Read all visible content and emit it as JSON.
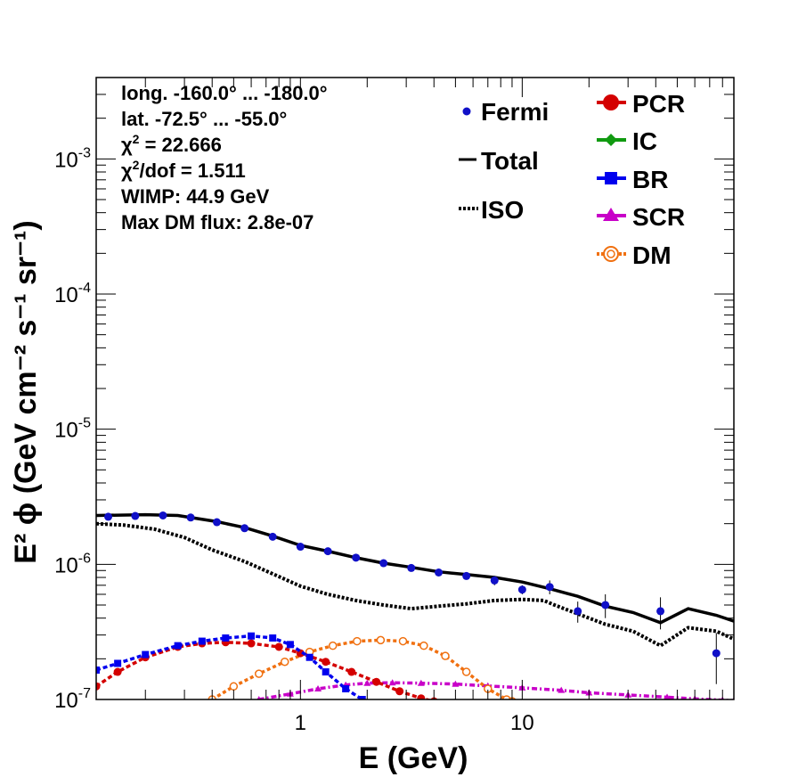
{
  "chart_data": {
    "type": "line",
    "x_scale": "log",
    "y_scale": "log",
    "xlim": [
      0.12,
      90
    ],
    "ylim": [
      1e-07,
      0.004
    ],
    "xlabel": "E (GeV)",
    "ylabel": "E² ϕ (GeV cm⁻² s⁻¹ sr⁻¹)",
    "x_ticks": [
      {
        "value": 1,
        "label": "1"
      },
      {
        "value": 10,
        "label": "10"
      }
    ],
    "y_ticks": [
      {
        "value": 1e-07,
        "base": "10",
        "exp": "-7"
      },
      {
        "value": 1e-06,
        "base": "10",
        "exp": "-6"
      },
      {
        "value": 1e-05,
        "base": "10",
        "exp": "-5"
      },
      {
        "value": 0.0001,
        "base": "10",
        "exp": "-4"
      },
      {
        "value": 0.001,
        "base": "10",
        "exp": "-3"
      }
    ],
    "info": {
      "longitude": "long. -160.0° ... -180.0°",
      "latitude": "lat. -72.5° ... -55.0°",
      "chi2_symbol": "χ",
      "chi2_rest": " = 22.666",
      "chi2dof_rest": "/dof = 1.511",
      "wimp": "WIMP: 44.9 GeV",
      "max_dm": "Max DM flux: 2.8e-07"
    },
    "legend_left": [
      "Fermi",
      "Total",
      "ISO"
    ],
    "legend_right": [
      "PCR",
      "IC",
      "BR",
      "SCR",
      "DM"
    ],
    "colors": {
      "Fermi": "#1010c8",
      "Total": "#000000",
      "ISO": "#000000",
      "PCR": "#d40000",
      "IC": "#109a10",
      "BR": "#0000ee",
      "SCR": "#c800c8",
      "DM": "#f07010"
    },
    "fermi": [
      {
        "x": 0.136,
        "y": 2.25e-06
      },
      {
        "x": 0.18,
        "y": 2.28e-06
      },
      {
        "x": 0.24,
        "y": 2.3e-06
      },
      {
        "x": 0.32,
        "y": 2.22e-06
      },
      {
        "x": 0.42,
        "y": 2.05e-06
      },
      {
        "x": 0.56,
        "y": 1.85e-06
      },
      {
        "x": 0.75,
        "y": 1.6e-06
      },
      {
        "x": 1.0,
        "y": 1.35e-06
      },
      {
        "x": 1.33,
        "y": 1.25e-06
      },
      {
        "x": 1.78,
        "y": 1.12e-06
      },
      {
        "x": 2.37,
        "y": 1.02e-06
      },
      {
        "x": 3.16,
        "y": 9.4e-07
      },
      {
        "x": 4.2,
        "y": 8.7e-07
      },
      {
        "x": 5.6,
        "y": 8.2e-07,
        "err": 5e-08
      },
      {
        "x": 7.5,
        "y": 7.6e-07,
        "err": 6e-08
      },
      {
        "x": 10.0,
        "y": 6.5e-07,
        "err": 5e-08
      },
      {
        "x": 13.3,
        "y": 6.8e-07,
        "err": 8e-08
      },
      {
        "x": 17.8,
        "y": 4.5e-07,
        "err": 8e-08
      },
      {
        "x": 23.7,
        "y": 5e-07,
        "err": 1e-07
      },
      {
        "x": 42.0,
        "y": 4.5e-07,
        "err": 1.2e-07
      },
      {
        "x": 75.0,
        "y": 2.2e-07,
        "err": 9e-08
      }
    ],
    "series": [
      {
        "name": "Total",
        "x": [
          0.12,
          0.2,
          0.28,
          0.42,
          0.56,
          0.75,
          1.0,
          1.33,
          1.78,
          2.37,
          3.16,
          4.2,
          5.6,
          7.5,
          10.0,
          13.3,
          17.8,
          23.7,
          31.6,
          42.0,
          56.0,
          75.0,
          90.0
        ],
        "y": [
          2.3e-06,
          2.33e-06,
          2.3e-06,
          2.07e-06,
          1.87e-06,
          1.62e-06,
          1.38e-06,
          1.25e-06,
          1.12e-06,
          1.02e-06,
          9.5e-07,
          8.8e-07,
          8.4e-07,
          8e-07,
          7.4e-07,
          6.6e-07,
          5.8e-07,
          4.9e-07,
          4.4e-07,
          3.7e-07,
          4.7e-07,
          4.2e-07,
          3.8e-07
        ]
      },
      {
        "name": "ISO",
        "x": [
          0.12,
          0.16,
          0.22,
          0.3,
          0.4,
          0.56,
          0.75,
          1.0,
          1.33,
          1.78,
          2.37,
          3.16,
          4.2,
          5.6,
          7.5,
          10.0,
          12.5,
          14.0,
          17.8,
          23.7,
          31.6,
          42.0,
          56.0,
          75.0,
          90.0
        ],
        "y": [
          2e-06,
          1.95e-06,
          1.82e-06,
          1.58e-06,
          1.28e-06,
          1.05e-06,
          8.5e-07,
          6.9e-07,
          6e-07,
          5.4e-07,
          5e-07,
          4.7e-07,
          4.9e-07,
          5.1e-07,
          5.4e-07,
          5.5e-07,
          5.4e-07,
          5e-07,
          4.3e-07,
          3.6e-07,
          3.2e-07,
          2.5e-07,
          3.4e-07,
          3.2e-07,
          2.8e-07
        ]
      },
      {
        "name": "PCR",
        "marker": "circle",
        "x": [
          0.12,
          0.15,
          0.2,
          0.28,
          0.36,
          0.46,
          0.6,
          0.8,
          1.0,
          1.3,
          1.7,
          2.2,
          2.8,
          3.5,
          4.0
        ],
        "y": [
          1.25e-07,
          1.6e-07,
          2.05e-07,
          2.45e-07,
          2.6e-07,
          2.65e-07,
          2.6e-07,
          2.45e-07,
          2.2e-07,
          1.9e-07,
          1.6e-07,
          1.35e-07,
          1.15e-07,
          1.02e-07,
          9.7e-08
        ]
      },
      {
        "name": "BR",
        "marker": "square",
        "x": [
          0.12,
          0.15,
          0.2,
          0.28,
          0.36,
          0.46,
          0.6,
          0.75,
          0.9,
          1.1,
          1.3,
          1.6,
          1.9,
          2.1
        ],
        "y": [
          1.65e-07,
          1.85e-07,
          2.15e-07,
          2.5e-07,
          2.7e-07,
          2.85e-07,
          2.95e-07,
          2.85e-07,
          2.55e-07,
          2.05e-07,
          1.6e-07,
          1.2e-07,
          1e-07,
          9.3e-08
        ]
      },
      {
        "name": "DM",
        "marker": "ring",
        "x": [
          0.4,
          0.5,
          0.65,
          0.85,
          1.1,
          1.4,
          1.8,
          2.3,
          2.9,
          3.6,
          4.5,
          5.6,
          7.0,
          8.5,
          9.0
        ],
        "y": [
          1e-07,
          1.25e-07,
          1.55e-07,
          1.9e-07,
          2.25e-07,
          2.5e-07,
          2.7e-07,
          2.75e-07,
          2.7e-07,
          2.5e-07,
          2.1e-07,
          1.6e-07,
          1.2e-07,
          1e-07,
          9.7e-08
        ]
      },
      {
        "name": "SCR",
        "marker": "triangle",
        "x": [
          0.65,
          0.9,
          1.2,
          1.6,
          2.0,
          2.6,
          3.5,
          5.0,
          7.0,
          10.0,
          15.0,
          20.0,
          30.0,
          45.0,
          60.0,
          80.0,
          90.0
        ],
        "y": [
          1e-07,
          1.1e-07,
          1.2e-07,
          1.28e-07,
          1.32e-07,
          1.33e-07,
          1.32e-07,
          1.3e-07,
          1.26e-07,
          1.22e-07,
          1.17e-07,
          1.12e-07,
          1.08e-07,
          1.04e-07,
          1.01e-07,
          9.9e-08,
          9.8e-08
        ]
      }
    ]
  }
}
